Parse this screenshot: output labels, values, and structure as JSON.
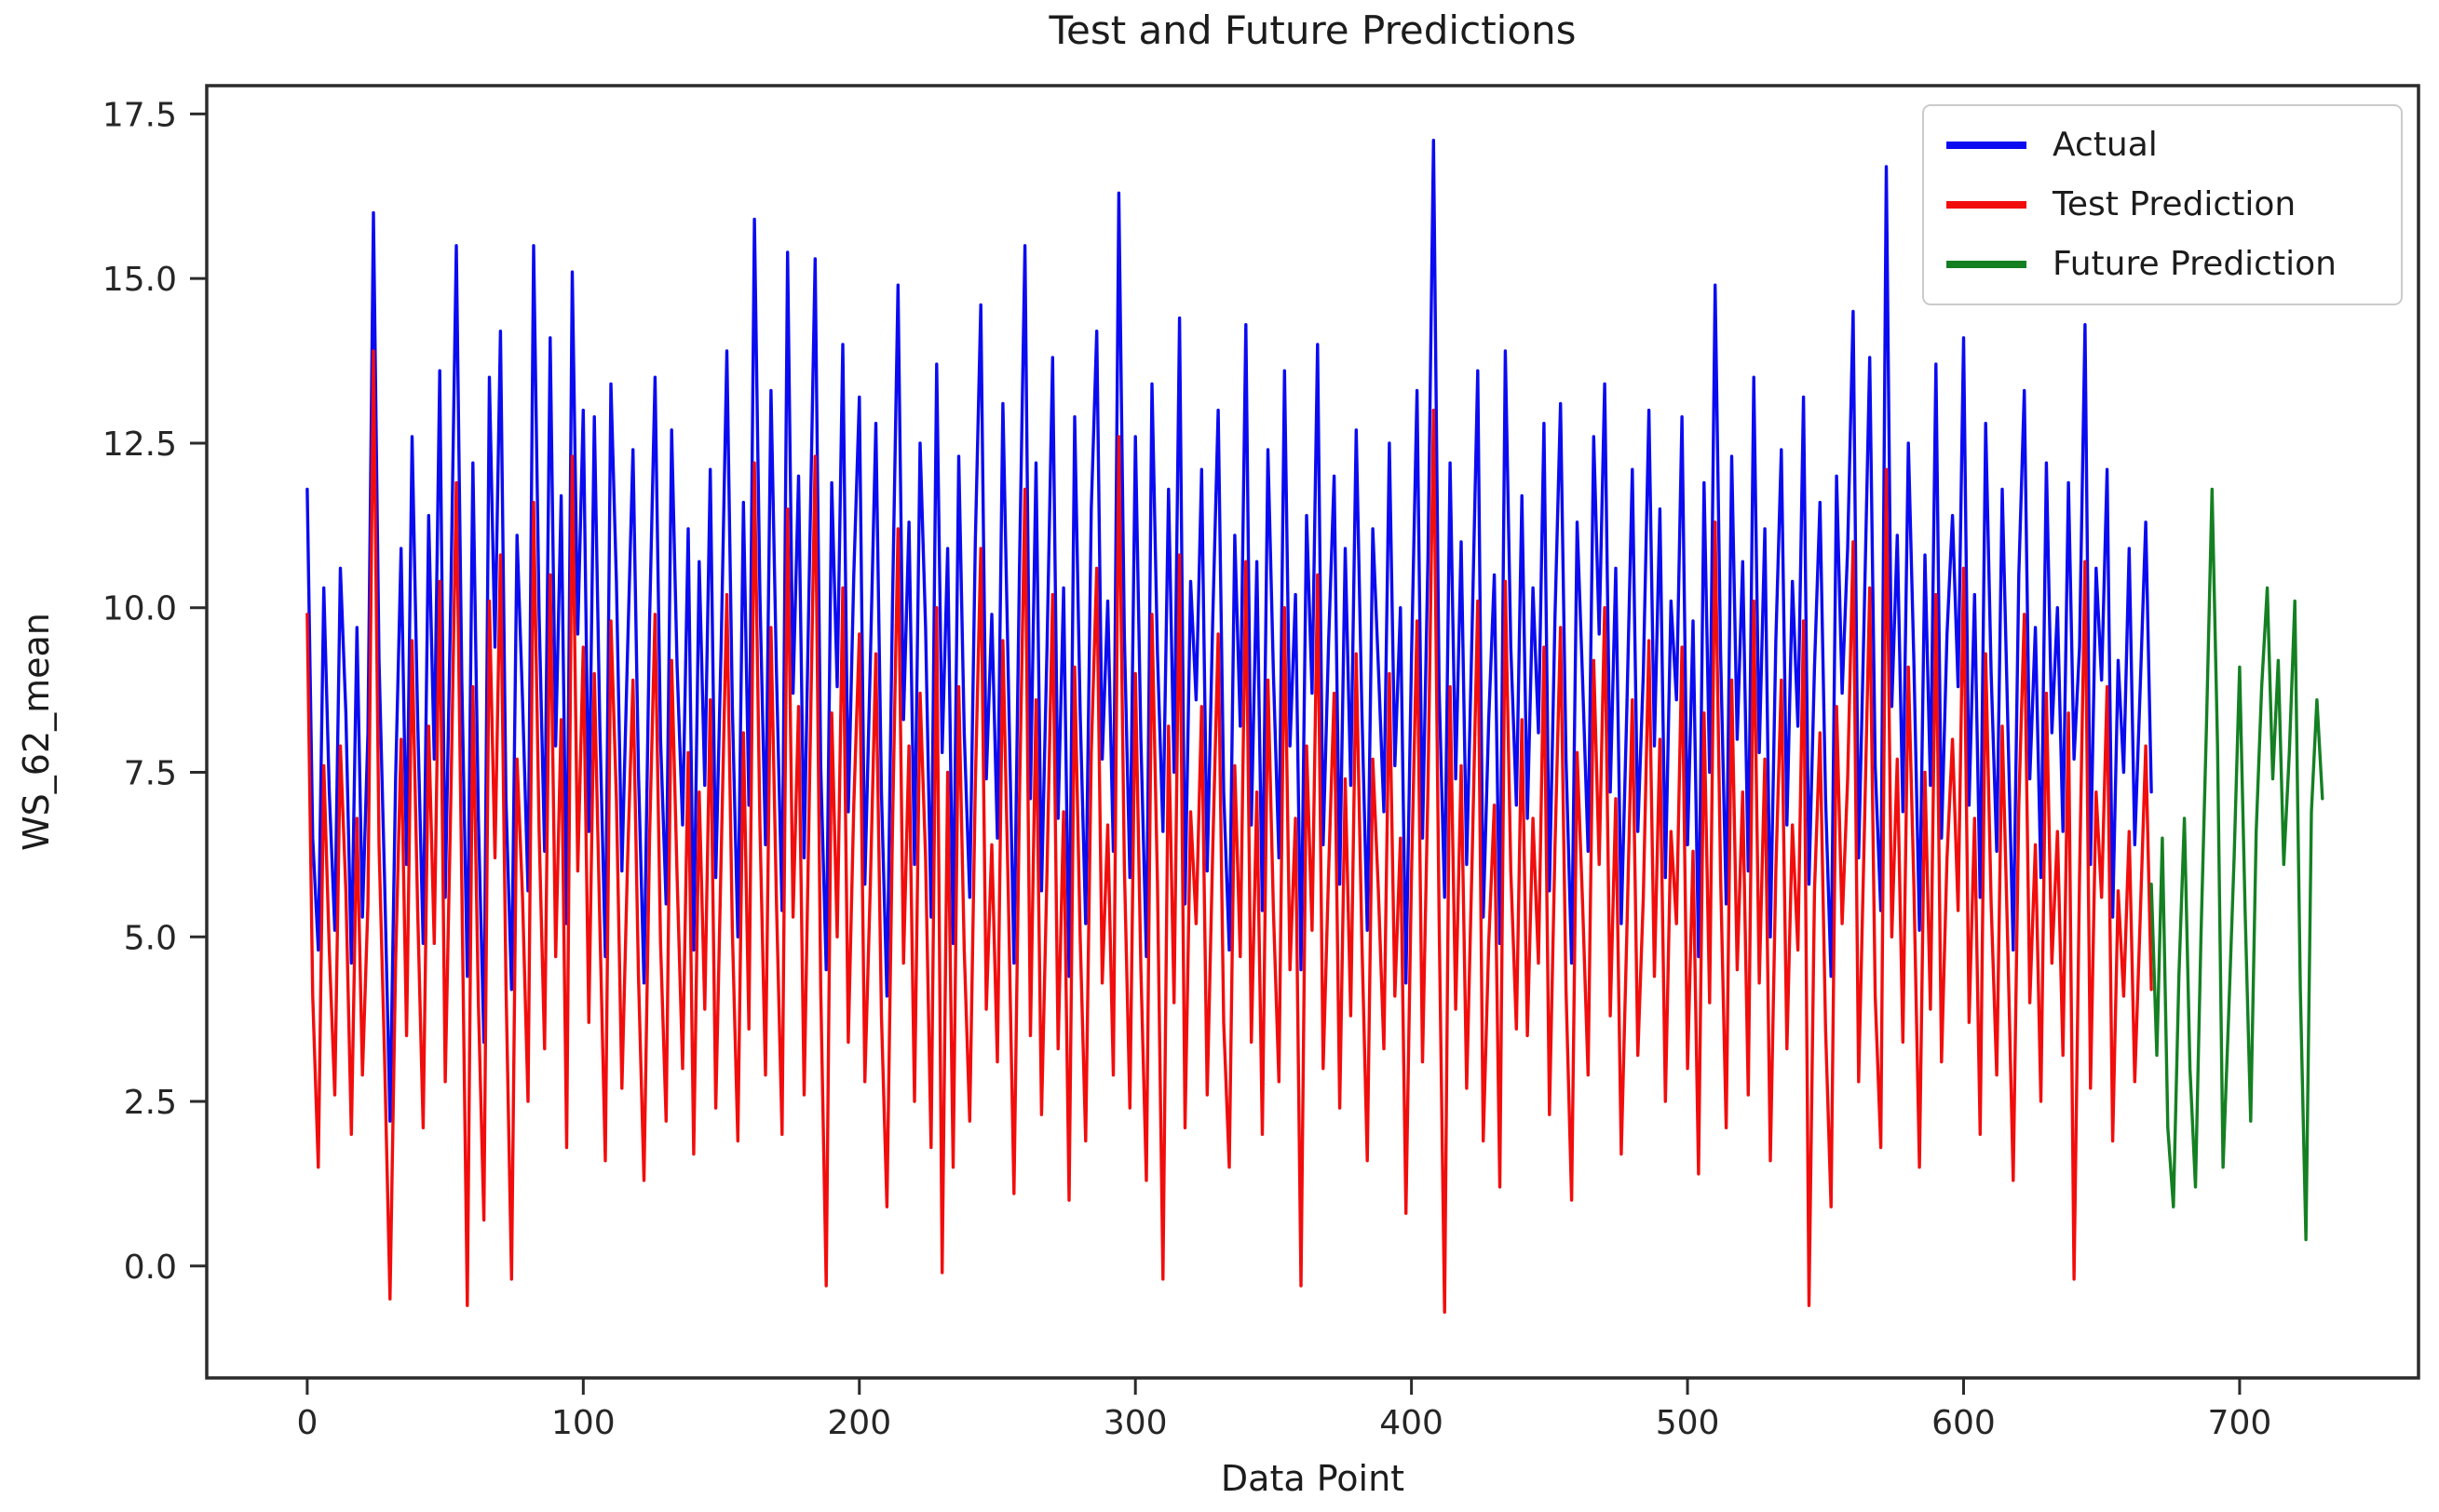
{
  "title": "Test and Future Predictions",
  "chart_data": {
    "type": "line",
    "title": "Test and Future Predictions",
    "xlabel": "Data Point",
    "ylabel": "WS_62_mean",
    "xlim": [
      -36.4,
      764.8
    ],
    "ylim": [
      -1.7,
      17.93
    ],
    "grid": false,
    "legend_position": "upper right",
    "xticks": [
      0,
      100,
      200,
      300,
      400,
      500,
      600,
      700
    ],
    "yticks": [
      0.0,
      2.5,
      5.0,
      7.5,
      10.0,
      12.5,
      15.0,
      17.5
    ],
    "axis_color": "#2b2b2b",
    "series": [
      {
        "name": "Actual",
        "color": "#0b0bf2",
        "x_start": 0,
        "x_step": 2,
        "values": [
          11.8,
          6.5,
          4.8,
          10.3,
          7.2,
          5.1,
          10.6,
          8.4,
          4.6,
          9.7,
          5.3,
          8.1,
          16.0,
          9.2,
          5.9,
          2.2,
          7.4,
          10.9,
          6.1,
          12.6,
          8.3,
          4.9,
          11.4,
          7.7,
          13.6,
          5.6,
          10.1,
          15.5,
          8.9,
          4.4,
          12.2,
          6.8,
          3.4,
          13.5,
          9.4,
          14.2,
          7.1,
          4.2,
          11.1,
          8.6,
          5.7,
          15.5,
          9.9,
          6.3,
          14.1,
          7.9,
          11.7,
          5.2,
          15.1,
          9.6,
          13.0,
          6.6,
          12.9,
          8.2,
          4.7,
          13.4,
          10.4,
          6.0,
          9.3,
          12.4,
          7.5,
          4.3,
          9.8,
          13.5,
          8.0,
          5.5,
          12.7,
          9.1,
          6.7,
          11.2,
          4.8,
          10.7,
          7.3,
          12.1,
          5.9,
          9.5,
          13.9,
          8.5,
          5.0,
          11.6,
          7.0,
          15.9,
          10.2,
          6.4,
          13.3,
          9.0,
          5.4,
          15.4,
          8.7,
          12.0,
          6.2,
          10.8,
          15.3,
          7.6,
          4.5,
          11.9,
          8.8,
          14.0,
          6.9,
          10.5,
          13.2,
          5.8,
          9.2,
          12.8,
          7.2,
          4.1,
          10.0,
          14.9,
          8.3,
          11.3,
          6.1,
          12.5,
          9.7,
          5.3,
          13.7,
          7.8,
          10.9,
          4.9,
          12.3,
          8.1,
          5.6,
          11.0,
          14.6,
          7.4,
          9.9,
          6.5,
          13.1,
          8.9,
          4.6,
          10.6,
          15.5,
          7.1,
          12.2,
          5.7,
          9.4,
          13.8,
          6.8,
          10.3,
          4.4,
          12.9,
          8.4,
          5.2,
          11.5,
          14.2,
          7.7,
          10.1,
          6.3,
          16.3,
          9.6,
          5.9,
          12.6,
          8.0,
          4.7,
          13.4,
          9.3,
          6.6,
          11.8,
          7.5,
          14.4,
          5.5,
          10.4,
          8.6,
          12.1,
          6.0,
          9.8,
          13.0,
          7.2,
          4.8,
          11.1,
          8.2,
          14.3,
          6.7,
          10.7,
          5.4,
          12.4,
          9.0,
          6.2,
          13.6,
          7.9,
          10.2,
          4.5,
          11.4,
          8.7,
          14.0,
          6.4,
          9.5,
          12.0,
          5.8,
          10.9,
          7.3,
          12.7,
          8.5,
          5.1,
          11.2,
          9.1,
          6.9,
          12.5,
          7.6,
          10.0,
          4.3,
          9.2,
          13.3,
          6.5,
          10.8,
          17.1,
          8.8,
          5.6,
          12.2,
          7.4,
          11.0,
          6.1,
          9.7,
          13.6,
          5.3,
          8.3,
          10.5,
          4.9,
          13.9,
          9.4,
          7.0,
          11.7,
          6.8,
          10.3,
          8.1,
          12.8,
          5.7,
          9.9,
          13.1,
          7.7,
          4.6,
          11.3,
          8.9,
          6.3,
          12.6,
          9.6,
          13.4,
          7.2,
          10.6,
          5.2,
          8.4,
          12.1,
          6.6,
          9.0,
          13.0,
          7.9,
          11.5,
          5.9,
          10.1,
          8.6,
          12.9,
          6.4,
          9.8,
          4.7,
          11.9,
          7.5,
          14.9,
          9.3,
          5.5,
          12.3,
          8.0,
          10.7,
          6.0,
          13.5,
          7.8,
          11.2,
          5.0,
          9.5,
          12.4,
          6.7,
          10.4,
          8.2,
          13.2,
          5.8,
          9.1,
          11.6,
          7.1,
          4.4,
          12.0,
          8.7,
          10.9,
          14.5,
          6.2,
          9.9,
          13.8,
          7.6,
          5.4,
          16.7,
          8.5,
          11.1,
          6.9,
          12.5,
          9.2,
          5.1,
          10.8,
          7.3,
          13.7,
          6.5,
          9.6,
          11.4,
          8.8,
          14.1,
          7.0,
          10.2,
          5.6,
          12.8,
          9.0,
          6.3,
          11.8,
          8.3,
          4.8,
          10.5,
          13.3,
          7.4,
          9.7,
          5.9,
          12.2,
          8.1,
          10.0,
          6.6,
          11.9,
          7.7,
          9.4,
          14.3,
          6.1,
          10.6,
          8.9,
          12.1,
          5.3,
          9.2,
          7.5,
          10.9,
          6.4,
          8.8,
          11.3,
          7.2
        ]
      },
      {
        "name": "Test Prediction",
        "color": "#f20d0d",
        "x_start": 0,
        "x_step": 2,
        "values": [
          9.9,
          4.1,
          1.5,
          7.6,
          4.8,
          2.6,
          7.9,
          5.7,
          2.0,
          6.8,
          2.9,
          5.5,
          13.9,
          6.4,
          3.2,
          -0.5,
          4.6,
          8.0,
          3.5,
          9.5,
          5.4,
          2.1,
          8.2,
          4.9,
          10.4,
          2.8,
          7.0,
          11.9,
          5.8,
          -0.6,
          8.8,
          4.0,
          0.7,
          10.1,
          6.2,
          10.8,
          4.3,
          -0.2,
          7.7,
          5.6,
          2.5,
          11.6,
          6.6,
          3.3,
          10.5,
          4.7,
          8.3,
          1.8,
          12.3,
          6.0,
          9.4,
          3.7,
          9.0,
          5.2,
          1.6,
          9.8,
          7.1,
          2.7,
          6.1,
          8.9,
          4.4,
          1.3,
          6.5,
          9.9,
          4.9,
          2.2,
          9.2,
          5.9,
          3.0,
          7.8,
          1.7,
          7.2,
          3.9,
          8.6,
          2.4,
          6.3,
          10.2,
          5.1,
          1.9,
          8.1,
          3.6,
          12.2,
          6.7,
          2.9,
          9.7,
          5.5,
          2.0,
          11.5,
          5.3,
          8.5,
          2.6,
          7.4,
          12.3,
          4.2,
          -0.3,
          8.4,
          5.0,
          10.3,
          3.4,
          7.0,
          9.6,
          2.8,
          5.8,
          9.3,
          3.8,
          0.9,
          6.6,
          11.2,
          4.6,
          7.9,
          2.5,
          8.7,
          6.2,
          1.8,
          10.0,
          -0.1,
          7.5,
          1.5,
          8.8,
          4.8,
          2.2,
          7.3,
          10.9,
          3.9,
          6.4,
          3.1,
          9.5,
          5.6,
          1.1,
          7.1,
          11.8,
          3.5,
          8.6,
          2.3,
          6.0,
          10.2,
          3.3,
          6.9,
          1.0,
          9.1,
          5.0,
          1.9,
          7.8,
          10.6,
          4.3,
          6.7,
          2.9,
          12.6,
          6.1,
          2.4,
          9.0,
          4.5,
          1.3,
          9.9,
          5.8,
          -0.2,
          8.2,
          4.0,
          10.8,
          2.1,
          6.9,
          5.2,
          8.5,
          2.6,
          6.3,
          9.6,
          3.7,
          1.5,
          7.6,
          4.7,
          10.7,
          3.4,
          7.2,
          2.0,
          8.9,
          5.4,
          2.8,
          10.0,
          4.5,
          6.8,
          -0.3,
          7.9,
          5.1,
          10.5,
          3.0,
          6.0,
          8.7,
          2.4,
          7.4,
          3.8,
          9.3,
          5.0,
          1.6,
          7.7,
          5.7,
          3.3,
          9.0,
          4.1,
          6.5,
          0.8,
          5.9,
          9.8,
          3.1,
          7.3,
          13.0,
          5.3,
          -0.7,
          8.8,
          3.9,
          7.6,
          2.7,
          6.2,
          10.1,
          1.9,
          4.9,
          7.0,
          1.2,
          10.4,
          6.0,
          3.6,
          8.3,
          3.5,
          6.8,
          4.6,
          9.4,
          2.3,
          6.4,
          9.7,
          4.2,
          1.0,
          7.8,
          5.5,
          2.9,
          9.2,
          6.1,
          10.0,
          3.8,
          7.1,
          1.7,
          5.0,
          8.6,
          3.2,
          5.6,
          9.5,
          4.4,
          8.0,
          2.5,
          6.6,
          5.2,
          9.4,
          3.0,
          6.3,
          1.4,
          8.4,
          4.0,
          11.3,
          5.9,
          2.1,
          8.9,
          4.5,
          7.2,
          2.6,
          10.1,
          4.3,
          7.7,
          1.6,
          6.0,
          8.9,
          3.3,
          6.7,
          4.8,
          9.8,
          -0.6,
          5.7,
          8.1,
          3.6,
          0.9,
          8.5,
          5.2,
          7.4,
          11.0,
          2.8,
          6.5,
          10.3,
          4.1,
          1.8,
          12.1,
          5.0,
          7.7,
          3.4,
          9.1,
          5.8,
          1.5,
          7.5,
          3.9,
          10.2,
          3.1,
          6.2,
          8.0,
          5.4,
          10.6,
          3.7,
          6.8,
          2.0,
          9.3,
          5.5,
          2.9,
          8.2,
          4.9,
          1.3,
          7.0,
          9.9,
          4.0,
          6.4,
          2.5,
          8.7,
          4.6,
          6.6,
          3.2,
          8.4,
          -0.2,
          5.9,
          10.7,
          2.7,
          7.2,
          5.6,
          8.8,
          1.9,
          5.7,
          4.1,
          6.6,
          2.8,
          5.3,
          7.9,
          4.2
        ]
      },
      {
        "name": "Future Prediction",
        "color": "#148022",
        "x_start": 668,
        "x_step": 2,
        "values": [
          5.8,
          3.2,
          6.5,
          2.1,
          0.9,
          4.4,
          6.8,
          3.0,
          1.2,
          5.0,
          8.2,
          11.8,
          7.9,
          1.5,
          3.8,
          6.2,
          9.1,
          5.4,
          2.2,
          6.6,
          8.8,
          10.3,
          7.4,
          9.2,
          6.1,
          7.8,
          10.1,
          4.2,
          0.4,
          6.9,
          8.6,
          7.1
        ]
      }
    ]
  }
}
